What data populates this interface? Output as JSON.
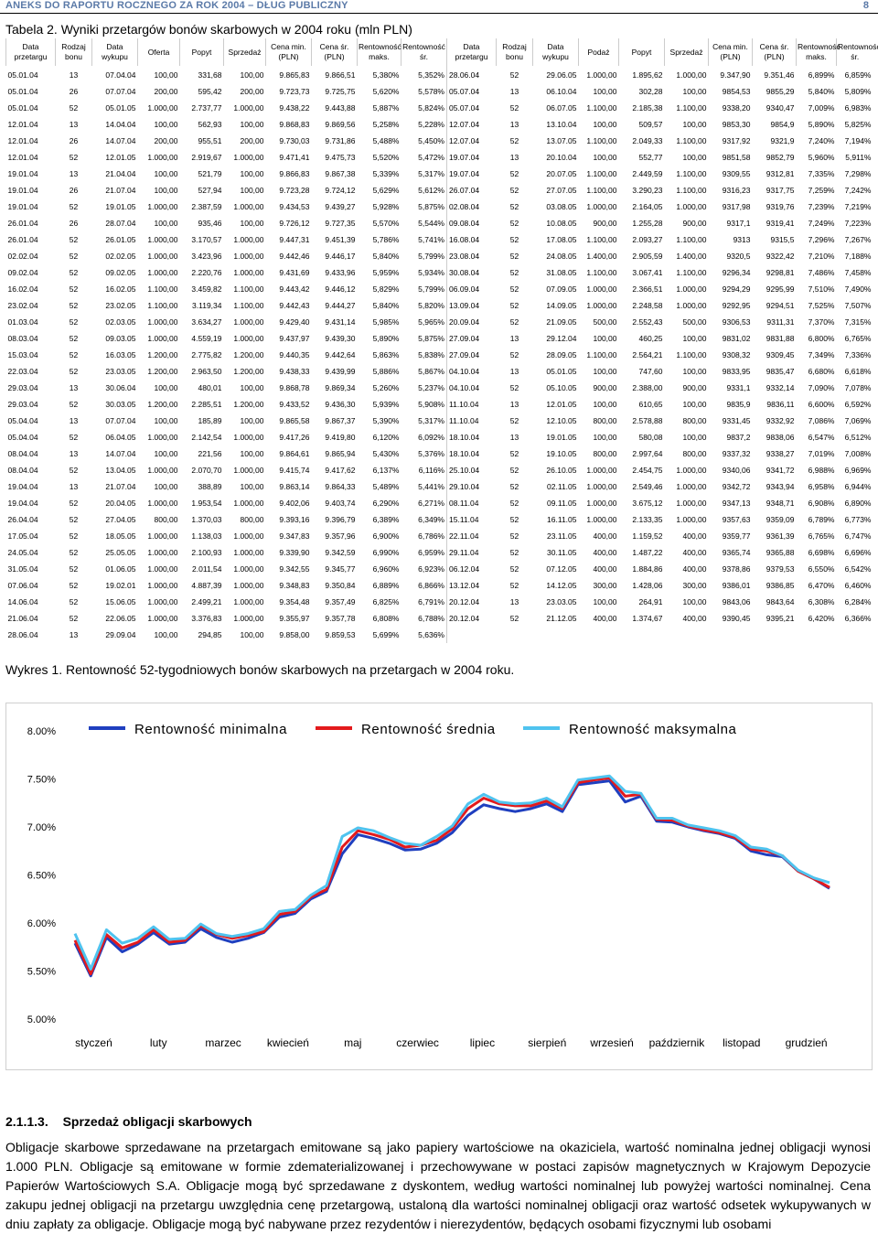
{
  "header": {
    "title": "ANEKS DO RAPORTU ROCZNEGO ZA ROK 2004 – DŁUG PUBLICZNY",
    "page_number": "8"
  },
  "table_title": "Tabela 2. Wyniki przetargów bonów skarbowych w 2004 roku (mln PLN)",
  "table": {
    "headers": [
      "Data przetargu",
      "Rodzaj bonu",
      "Data wykupu",
      "Oferta",
      "Popyt",
      "Sprzedaż",
      "Cena min. (PLN)",
      "Cena śr. (PLN)",
      "Rentowność maks.",
      "Rentowność śr.",
      "Data przetargu",
      "Rodzaj bonu",
      "Data wykupu",
      "Podaż",
      "Popyt",
      "Sprzedaż",
      "Cena min. (PLN)",
      "Cena śr. (PLN)",
      "Rentowność maks.",
      "Rentowność śr."
    ],
    "rows": [
      [
        "05.01.04",
        "13",
        "07.04.04",
        "100,00",
        "331,68",
        "100,00",
        "9.865,83",
        "9.866,51",
        "5,380%",
        "5,352%",
        "28.06.04",
        "52",
        "29.06.05",
        "1.000,00",
        "1.895,62",
        "1.000,00",
        "9.347,90",
        "9.351,46",
        "6,899%",
        "6,859%"
      ],
      [
        "05.01.04",
        "26",
        "07.07.04",
        "200,00",
        "595,42",
        "200,00",
        "9.723,73",
        "9.725,75",
        "5,620%",
        "5,578%",
        "05.07.04",
        "13",
        "06.10.04",
        "100,00",
        "302,28",
        "100,00",
        "9854,53",
        "9855,29",
        "5,840%",
        "5,809%"
      ],
      [
        "05.01.04",
        "52",
        "05.01.05",
        "1.000,00",
        "2.737,77",
        "1.000,00",
        "9.438,22",
        "9.443,88",
        "5,887%",
        "5,824%",
        "05.07.04",
        "52",
        "06.07.05",
        "1.100,00",
        "2.185,38",
        "1.100,00",
        "9338,20",
        "9340,47",
        "7,009%",
        "6,983%"
      ],
      [
        "12.01.04",
        "13",
        "14.04.04",
        "100,00",
        "562,93",
        "100,00",
        "9.868,83",
        "9.869,56",
        "5,258%",
        "5,228%",
        "12.07.04",
        "13",
        "13.10.04",
        "100,00",
        "509,57",
        "100,00",
        "9853,30",
        "9854,9",
        "5,890%",
        "5,825%"
      ],
      [
        "12.01.04",
        "26",
        "14.07.04",
        "200,00",
        "955,51",
        "200,00",
        "9.730,03",
        "9.731,86",
        "5,488%",
        "5,450%",
        "12.07.04",
        "52",
        "13.07.05",
        "1.100,00",
        "2.049,33",
        "1.100,00",
        "9317,92",
        "9321,9",
        "7,240%",
        "7,194%"
      ],
      [
        "12.01.04",
        "52",
        "12.01.05",
        "1.000,00",
        "2.919,67",
        "1.000,00",
        "9.471,41",
        "9.475,73",
        "5,520%",
        "5,472%",
        "19.07.04",
        "13",
        "20.10.04",
        "100,00",
        "552,77",
        "100,00",
        "9851,58",
        "9852,79",
        "5,960%",
        "5,911%"
      ],
      [
        "19.01.04",
        "13",
        "21.04.04",
        "100,00",
        "521,79",
        "100,00",
        "9.866,83",
        "9.867,38",
        "5,339%",
        "5,317%",
        "19.07.04",
        "52",
        "20.07.05",
        "1.100,00",
        "2.449,59",
        "1.100,00",
        "9309,55",
        "9312,81",
        "7,335%",
        "7,298%"
      ],
      [
        "19.01.04",
        "26",
        "21.07.04",
        "100,00",
        "527,94",
        "100,00",
        "9.723,28",
        "9.724,12",
        "5,629%",
        "5,612%",
        "26.07.04",
        "52",
        "27.07.05",
        "1.100,00",
        "3.290,23",
        "1.100,00",
        "9316,23",
        "9317,75",
        "7,259%",
        "7,242%"
      ],
      [
        "19.01.04",
        "52",
        "19.01.05",
        "1.000,00",
        "2.387,59",
        "1.000,00",
        "9.434,53",
        "9.439,27",
        "5,928%",
        "5,875%",
        "02.08.04",
        "52",
        "03.08.05",
        "1.000,00",
        "2.164,05",
        "1.000,00",
        "9317,98",
        "9319,76",
        "7,239%",
        "7,219%"
      ],
      [
        "26.01.04",
        "26",
        "28.07.04",
        "100,00",
        "935,46",
        "100,00",
        "9.726,12",
        "9.727,35",
        "5,570%",
        "5,544%",
        "09.08.04",
        "52",
        "10.08.05",
        "900,00",
        "1.255,28",
        "900,00",
        "9317,1",
        "9319,41",
        "7,249%",
        "7,223%"
      ],
      [
        "26.01.04",
        "52",
        "26.01.05",
        "1.000,00",
        "3.170,57",
        "1.000,00",
        "9.447,31",
        "9.451,39",
        "5,786%",
        "5,741%",
        "16.08.04",
        "52",
        "17.08.05",
        "1.100,00",
        "2.093,27",
        "1.100,00",
        "9313",
        "9315,5",
        "7,296%",
        "7,267%"
      ],
      [
        "02.02.04",
        "52",
        "02.02.05",
        "1.000,00",
        "3.423,96",
        "1.000,00",
        "9.442,46",
        "9.446,17",
        "5,840%",
        "5,799%",
        "23.08.04",
        "52",
        "24.08.05",
        "1.400,00",
        "2.905,59",
        "1.400,00",
        "9320,5",
        "9322,42",
        "7,210%",
        "7,188%"
      ],
      [
        "09.02.04",
        "52",
        "09.02.05",
        "1.000,00",
        "2.220,76",
        "1.000,00",
        "9.431,69",
        "9.433,96",
        "5,959%",
        "5,934%",
        "30.08.04",
        "52",
        "31.08.05",
        "1.100,00",
        "3.067,41",
        "1.100,00",
        "9296,34",
        "9298,81",
        "7,486%",
        "7,458%"
      ],
      [
        "16.02.04",
        "52",
        "16.02.05",
        "1.100,00",
        "3.459,82",
        "1.100,00",
        "9.443,42",
        "9.446,12",
        "5,829%",
        "5,799%",
        "06.09.04",
        "52",
        "07.09.05",
        "1.000,00",
        "2.366,51",
        "1.000,00",
        "9294,29",
        "9295,99",
        "7,510%",
        "7,490%"
      ],
      [
        "23.02.04",
        "52",
        "23.02.05",
        "1.100,00",
        "3.119,34",
        "1.100,00",
        "9.442,43",
        "9.444,27",
        "5,840%",
        "5,820%",
        "13.09.04",
        "52",
        "14.09.05",
        "1.000,00",
        "2.248,58",
        "1.000,00",
        "9292,95",
        "9294,51",
        "7,525%",
        "7,507%"
      ],
      [
        "01.03.04",
        "52",
        "02.03.05",
        "1.000,00",
        "3.634,27",
        "1.000,00",
        "9.429,40",
        "9.431,14",
        "5,985%",
        "5,965%",
        "20.09.04",
        "52",
        "21.09.05",
        "500,00",
        "2.552,43",
        "500,00",
        "9306,53",
        "9311,31",
        "7,370%",
        "7,315%"
      ],
      [
        "08.03.04",
        "52",
        "09.03.05",
        "1.000,00",
        "4.559,19",
        "1.000,00",
        "9.437,97",
        "9.439,30",
        "5,890%",
        "5,875%",
        "27.09.04",
        "13",
        "29.12.04",
        "100,00",
        "460,25",
        "100,00",
        "9831,02",
        "9831,88",
        "6,800%",
        "6,765%"
      ],
      [
        "15.03.04",
        "52",
        "16.03.05",
        "1.200,00",
        "2.775,82",
        "1.200,00",
        "9.440,35",
        "9.442,64",
        "5,863%",
        "5,838%",
        "27.09.04",
        "52",
        "28.09.05",
        "1.100,00",
        "2.564,21",
        "1.100,00",
        "9308,32",
        "9309,45",
        "7,349%",
        "7,336%"
      ],
      [
        "22.03.04",
        "52",
        "23.03.05",
        "1.200,00",
        "2.963,50",
        "1.200,00",
        "9.438,33",
        "9.439,99",
        "5,886%",
        "5,867%",
        "04.10.04",
        "13",
        "05.01.05",
        "100,00",
        "747,60",
        "100,00",
        "9833,95",
        "9835,47",
        "6,680%",
        "6,618%"
      ],
      [
        "29.03.04",
        "13",
        "30.06.04",
        "100,00",
        "480,01",
        "100,00",
        "9.868,78",
        "9.869,34",
        "5,260%",
        "5,237%",
        "04.10.04",
        "52",
        "05.10.05",
        "900,00",
        "2.388,00",
        "900,00",
        "9331,1",
        "9332,14",
        "7,090%",
        "7,078%"
      ],
      [
        "29.03.04",
        "52",
        "30.03.05",
        "1.200,00",
        "2.285,51",
        "1.200,00",
        "9.433,52",
        "9.436,30",
        "5,939%",
        "5,908%",
        "11.10.04",
        "13",
        "12.01.05",
        "100,00",
        "610,65",
        "100,00",
        "9835,9",
        "9836,11",
        "6,600%",
        "6,592%"
      ],
      [
        "05.04.04",
        "13",
        "07.07.04",
        "100,00",
        "185,89",
        "100,00",
        "9.865,58",
        "9.867,37",
        "5,390%",
        "5,317%",
        "11.10.04",
        "52",
        "12.10.05",
        "800,00",
        "2.578,88",
        "800,00",
        "9331,45",
        "9332,92",
        "7,086%",
        "7,069%"
      ],
      [
        "05.04.04",
        "52",
        "06.04.05",
        "1.000,00",
        "2.142,54",
        "1.000,00",
        "9.417,26",
        "9.419,80",
        "6,120%",
        "6,092%",
        "18.10.04",
        "13",
        "19.01.05",
        "100,00",
        "580,08",
        "100,00",
        "9837,2",
        "9838,06",
        "6,547%",
        "6,512%"
      ],
      [
        "08.04.04",
        "13",
        "14.07.04",
        "100,00",
        "221,56",
        "100,00",
        "9.864,61",
        "9.865,94",
        "5,430%",
        "5,376%",
        "18.10.04",
        "52",
        "19.10.05",
        "800,00",
        "2.997,64",
        "800,00",
        "9337,32",
        "9338,27",
        "7,019%",
        "7,008%"
      ],
      [
        "08.04.04",
        "52",
        "13.04.05",
        "1.000,00",
        "2.070,70",
        "1.000,00",
        "9.415,74",
        "9.417,62",
        "6,137%",
        "6,116%",
        "25.10.04",
        "52",
        "26.10.05",
        "1.000,00",
        "2.454,75",
        "1.000,00",
        "9340,06",
        "9341,72",
        "6,988%",
        "6,969%"
      ],
      [
        "19.04.04",
        "13",
        "21.07.04",
        "100,00",
        "388,89",
        "100,00",
        "9.863,14",
        "9.864,33",
        "5,489%",
        "5,441%",
        "29.10.04",
        "52",
        "02.11.05",
        "1.000,00",
        "2.549,46",
        "1.000,00",
        "9342,72",
        "9343,94",
        "6,958%",
        "6,944%"
      ],
      [
        "19.04.04",
        "52",
        "20.04.05",
        "1.000,00",
        "1.953,54",
        "1.000,00",
        "9.402,06",
        "9.403,74",
        "6,290%",
        "6,271%",
        "08.11.04",
        "52",
        "09.11.05",
        "1.000,00",
        "3.675,12",
        "1.000,00",
        "9347,13",
        "9348,71",
        "6,908%",
        "6,890%"
      ],
      [
        "26.04.04",
        "52",
        "27.04.05",
        "800,00",
        "1.370,03",
        "800,00",
        "9.393,16",
        "9.396,79",
        "6,389%",
        "6,349%",
        "15.11.04",
        "52",
        "16.11.05",
        "1.000,00",
        "2.133,35",
        "1.000,00",
        "9357,63",
        "9359,09",
        "6,789%",
        "6,773%"
      ],
      [
        "17.05.04",
        "52",
        "18.05.05",
        "1.000,00",
        "1.138,03",
        "1.000,00",
        "9.347,83",
        "9.357,96",
        "6,900%",
        "6,786%",
        "22.11.04",
        "52",
        "23.11.05",
        "400,00",
        "1.159,52",
        "400,00",
        "9359,77",
        "9361,39",
        "6,765%",
        "6,747%"
      ],
      [
        "24.05.04",
        "52",
        "25.05.05",
        "1.000,00",
        "2.100,93",
        "1.000,00",
        "9.339,90",
        "9.342,59",
        "6,990%",
        "6,959%",
        "29.11.04",
        "52",
        "30.11.05",
        "400,00",
        "1.487,22",
        "400,00",
        "9365,74",
        "9365,88",
        "6,698%",
        "6,696%"
      ],
      [
        "31.05.04",
        "52",
        "01.06.05",
        "1.000,00",
        "2.011,54",
        "1.000,00",
        "9.342,55",
        "9.345,77",
        "6,960%",
        "6,923%",
        "06.12.04",
        "52",
        "07.12.05",
        "400,00",
        "1.884,86",
        "400,00",
        "9378,86",
        "9379,53",
        "6,550%",
        "6,542%"
      ],
      [
        "07.06.04",
        "52",
        "19.02.01",
        "1.000,00",
        "4.887,39",
        "1.000,00",
        "9.348,83",
        "9.350,84",
        "6,889%",
        "6,866%",
        "13.12.04",
        "52",
        "14.12.05",
        "300,00",
        "1.428,06",
        "300,00",
        "9386,01",
        "9386,85",
        "6,470%",
        "6,460%"
      ],
      [
        "14.06.04",
        "52",
        "15.06.05",
        "1.000,00",
        "2.499,21",
        "1.000,00",
        "9.354,48",
        "9.357,49",
        "6,825%",
        "6,791%",
        "20.12.04",
        "13",
        "23.03.05",
        "100,00",
        "264,91",
        "100,00",
        "9843,06",
        "9843,64",
        "6,308%",
        "6,284%"
      ],
      [
        "21.06.04",
        "52",
        "22.06.05",
        "1.000,00",
        "3.376,83",
        "1.000,00",
        "9.355,97",
        "9.357,78",
        "6,808%",
        "6,788%",
        "20.12.04",
        "52",
        "21.12.05",
        "400,00",
        "1.374,67",
        "400,00",
        "9390,45",
        "9395,21",
        "6,420%",
        "6,366%"
      ],
      [
        "28.06.04",
        "13",
        "29.09.04",
        "100,00",
        "294,85",
        "100,00",
        "9.858,00",
        "9.859,53",
        "5,699%",
        "5,636%",
        "",
        "",
        "",
        "",
        "",
        "",
        "",
        "",
        "",
        ""
      ]
    ]
  },
  "chart_caption": "Wykres 1. Rentowność 52-tygodniowych bonów skarbowych na przetargach w 2004 roku.",
  "chart_data": {
    "type": "line",
    "title": "",
    "xlabel": "",
    "ylabel": "",
    "ylim": [
      0.05,
      0.08
    ],
    "yticks": [
      "8.00%",
      "7.50%",
      "7.00%",
      "6.50%",
      "6.00%",
      "5.50%",
      "5.00%"
    ],
    "yticks_values": [
      0.08,
      0.075,
      0.07,
      0.065,
      0.06,
      0.055,
      0.05
    ],
    "x_month_labels": [
      "styczeń",
      "luty",
      "marzec",
      "kwiecień",
      "maj",
      "czerwiec",
      "lipiec",
      "sierpień",
      "wrzesień",
      "październik",
      "listopad",
      "grudzień"
    ],
    "legend_position": "top",
    "x": [
      "05.01.04",
      "12.01.04",
      "19.01.04",
      "26.01.04",
      "02.02.04",
      "09.02.04",
      "16.02.04",
      "23.02.04",
      "01.03.04",
      "08.03.04",
      "15.03.04",
      "22.03.04",
      "29.03.04",
      "05.04.04",
      "08.04.04",
      "19.04.04",
      "26.04.04",
      "17.05.04",
      "24.05.04",
      "31.05.04",
      "07.06.04",
      "14.06.04",
      "21.06.04",
      "28.06.04",
      "05.07.04",
      "12.07.04",
      "19.07.04",
      "26.07.04",
      "02.08.04",
      "09.08.04",
      "16.08.04",
      "23.08.04",
      "30.08.04",
      "06.09.04",
      "13.09.04",
      "20.09.04",
      "27.09.04",
      "04.10.04",
      "11.10.04",
      "18.10.04",
      "25.10.04",
      "29.10.04",
      "08.11.04",
      "15.11.04",
      "22.11.04",
      "29.11.04",
      "06.12.04",
      "13.12.04",
      "20.12.04"
    ],
    "series": [
      {
        "name": "Rentowność minimalna",
        "color": "#1f3fbf",
        "values": [
          0.0579,
          0.0545,
          0.0585,
          0.057,
          0.0578,
          0.059,
          0.0578,
          0.058,
          0.0594,
          0.0585,
          0.058,
          0.0584,
          0.059,
          0.0606,
          0.061,
          0.0625,
          0.0633,
          0.0672,
          0.0692,
          0.0688,
          0.0683,
          0.0676,
          0.0677,
          0.0683,
          0.0694,
          0.0712,
          0.0723,
          0.0719,
          0.0716,
          0.0719,
          0.0724,
          0.0716,
          0.0744,
          0.0746,
          0.0748,
          0.0726,
          0.0732,
          0.0706,
          0.0705,
          0.07,
          0.0696,
          0.0693,
          0.0688,
          0.0675,
          0.0671,
          0.0669,
          0.0654,
          0.0646,
          0.0636
        ]
      },
      {
        "name": "Rentowność średnia",
        "color": "#e31a1c",
        "values": [
          0.0582,
          0.0547,
          0.0588,
          0.0574,
          0.058,
          0.0593,
          0.058,
          0.0582,
          0.0597,
          0.0588,
          0.0584,
          0.0587,
          0.0591,
          0.0609,
          0.0612,
          0.0627,
          0.0635,
          0.0679,
          0.0696,
          0.0692,
          0.0687,
          0.0679,
          0.0681,
          0.0686,
          0.0698,
          0.0719,
          0.073,
          0.0724,
          0.0722,
          0.0722,
          0.0727,
          0.0719,
          0.0746,
          0.0749,
          0.0751,
          0.0732,
          0.0734,
          0.0708,
          0.0707,
          0.0701,
          0.0697,
          0.0694,
          0.0689,
          0.0677,
          0.0675,
          0.067,
          0.0654,
          0.0646,
          0.0637
        ]
      },
      {
        "name": "Rentowność maksymalna",
        "color": "#4fc3ef",
        "values": [
          0.0589,
          0.0552,
          0.0593,
          0.0579,
          0.0584,
          0.0596,
          0.0583,
          0.0584,
          0.0599,
          0.0589,
          0.0586,
          0.0589,
          0.0594,
          0.0612,
          0.0614,
          0.0629,
          0.0639,
          0.069,
          0.0699,
          0.0696,
          0.0689,
          0.0683,
          0.0681,
          0.069,
          0.0701,
          0.0724,
          0.0734,
          0.0726,
          0.0724,
          0.0725,
          0.073,
          0.0721,
          0.0749,
          0.0751,
          0.0753,
          0.0737,
          0.0735,
          0.0709,
          0.0709,
          0.0702,
          0.0699,
          0.0696,
          0.0691,
          0.0679,
          0.0677,
          0.067,
          0.0655,
          0.0647,
          0.0642
        ]
      }
    ]
  },
  "section": {
    "number": "2.1.1.3.",
    "title": "Sprzedaż obligacji skarbowych"
  },
  "body_text": "Obligacje skarbowe sprzedawane na przetargach emitowane są jako papiery wartościowe na okaziciela, wartość nominalna jednej obligacji wynosi 1.000 PLN. Obligacje są emitowane w formie zdematerializowanej i przechowywane w postaci zapisów magnetycznych w Krajowym Depozycie Papierów Wartościowych S.A. Obligacje mogą być sprzedawane z dyskontem, według wartości nominalnej lub powyżej wartości nominalnej. Cena zakupu jednej obligacji na przetargu uwzględnia cenę przetargową, ustaloną dla wartości nominalnej obligacji oraz wartość odsetek wykupywanych w dniu zapłaty za obligacje. Obligacje mogą być nabywane przez rezydentów i nierezydentów, będących osobami fizycznymi lub osobami"
}
